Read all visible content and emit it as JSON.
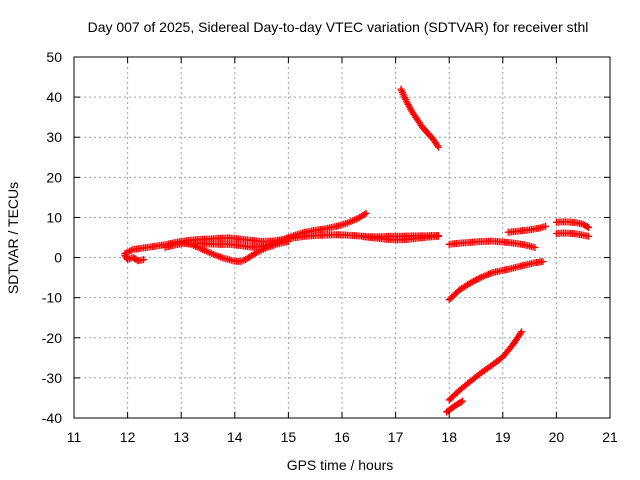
{
  "chart_data": {
    "type": "scatter",
    "title": "Day 007 of 2025, Sidereal Day-to-day VTEC variation (SDTVAR) for receiver sthl",
    "xlabel": "GPS time / hours",
    "ylabel": "SDTVAR / TECUs",
    "xlim": [
      11,
      21
    ],
    "ylim": [
      -40,
      50
    ],
    "xticks": [
      11,
      12,
      13,
      14,
      15,
      16,
      17,
      18,
      19,
      20,
      21
    ],
    "yticks": [
      -40,
      -30,
      -20,
      -10,
      0,
      10,
      20,
      30,
      40,
      50
    ],
    "grid": true,
    "legend": "none",
    "marker": "plus",
    "color": "#ff0000",
    "series": [
      {
        "x": [
          11.95,
          12.0,
          12.1,
          12.2,
          12.3
        ],
        "y": [
          0.5,
          -0.5,
          0.0,
          -0.8,
          -0.5
        ]
      },
      {
        "x": [
          11.95,
          12.1,
          12.3,
          12.5,
          12.7,
          12.9,
          13.1,
          13.3,
          13.5,
          13.7,
          13.9,
          14.1,
          14.3,
          14.5,
          14.7,
          14.9,
          15.1,
          15.3,
          15.5,
          15.7,
          15.9,
          16.1,
          16.3,
          16.5,
          16.7,
          16.9,
          17.1,
          17.3,
          17.5,
          17.7,
          17.8
        ],
        "y": [
          1.0,
          2.0,
          2.4,
          2.8,
          3.2,
          3.8,
          4.2,
          4.5,
          4.6,
          4.8,
          4.9,
          4.6,
          4.3,
          4.0,
          4.1,
          4.5,
          4.9,
          5.3,
          5.5,
          5.6,
          5.7,
          5.6,
          5.4,
          5.2,
          5.2,
          5.3,
          5.3,
          5.4,
          5.4,
          5.5,
          5.5
        ]
      },
      {
        "x": [
          12.7,
          12.9,
          13.1,
          13.3,
          13.5,
          13.7,
          13.9,
          14.1,
          14.3,
          14.5,
          14.7,
          14.9,
          15.1,
          15.3,
          15.5,
          15.7,
          15.9,
          16.1,
          16.3,
          16.45
        ],
        "y": [
          2.5,
          3.2,
          3.6,
          3.5,
          3.4,
          3.3,
          3.3,
          3.0,
          2.6,
          2.8,
          3.5,
          4.5,
          5.5,
          6.3,
          6.8,
          7.2,
          7.8,
          8.6,
          9.8,
          11.0
        ]
      },
      {
        "x": [
          13.0,
          13.2,
          13.4,
          13.6,
          13.8,
          14.0,
          14.1,
          14.2,
          14.4,
          14.6,
          14.8,
          15.0
        ],
        "y": [
          3.8,
          3.2,
          2.0,
          0.8,
          -0.2,
          -0.9,
          -1.0,
          -0.5,
          1.2,
          2.5,
          3.4,
          4.0
        ]
      },
      {
        "x": [
          16.4,
          16.6,
          16.8,
          17.0,
          17.2,
          17.4,
          17.6,
          17.8
        ],
        "y": [
          5.2,
          4.9,
          4.6,
          4.4,
          4.5,
          4.8,
          5.1,
          5.3
        ]
      },
      {
        "x": [
          17.1,
          17.2,
          17.3,
          17.4,
          17.5,
          17.6,
          17.7,
          17.8
        ],
        "y": [
          42.0,
          39.0,
          36.5,
          34.5,
          32.5,
          31.0,
          29.5,
          27.5
        ]
      },
      {
        "x": [
          18.0,
          18.2,
          18.4,
          18.6,
          18.8,
          19.0,
          19.2,
          19.4,
          19.6
        ],
        "y": [
          3.3,
          3.6,
          3.8,
          4.0,
          4.1,
          3.9,
          3.6,
          3.2,
          2.5
        ]
      },
      {
        "x": [
          18.0,
          18.2,
          18.4,
          18.6,
          18.8,
          19.0,
          19.2,
          19.4,
          19.6,
          19.75
        ],
        "y": [
          -10.5,
          -8.0,
          -6.3,
          -4.9,
          -3.8,
          -3.2,
          -2.6,
          -1.9,
          -1.3,
          -1.0
        ]
      },
      {
        "x": [
          19.1,
          19.3,
          19.5,
          19.7,
          19.8
        ],
        "y": [
          6.3,
          6.6,
          6.9,
          7.4,
          7.8
        ]
      },
      {
        "x": [
          18.0,
          18.2,
          18.4,
          18.6,
          18.8,
          19.0,
          19.2,
          19.35
        ],
        "y": [
          -35.5,
          -33.0,
          -30.8,
          -28.7,
          -26.8,
          -24.8,
          -21.5,
          -18.5
        ]
      },
      {
        "x": [
          17.95,
          18.05,
          18.15,
          18.25
        ],
        "y": [
          -38.5,
          -37.5,
          -36.6,
          -35.8
        ]
      },
      {
        "x": [
          20.0,
          20.1,
          20.2,
          20.3,
          20.4,
          20.5,
          20.6
        ],
        "y": [
          8.8,
          8.9,
          8.9,
          8.8,
          8.6,
          8.3,
          7.5
        ]
      },
      {
        "x": [
          20.0,
          20.1,
          20.2,
          20.3,
          20.4,
          20.5,
          20.6
        ],
        "y": [
          6.0,
          6.1,
          6.1,
          6.0,
          5.8,
          5.6,
          5.3
        ]
      }
    ]
  }
}
